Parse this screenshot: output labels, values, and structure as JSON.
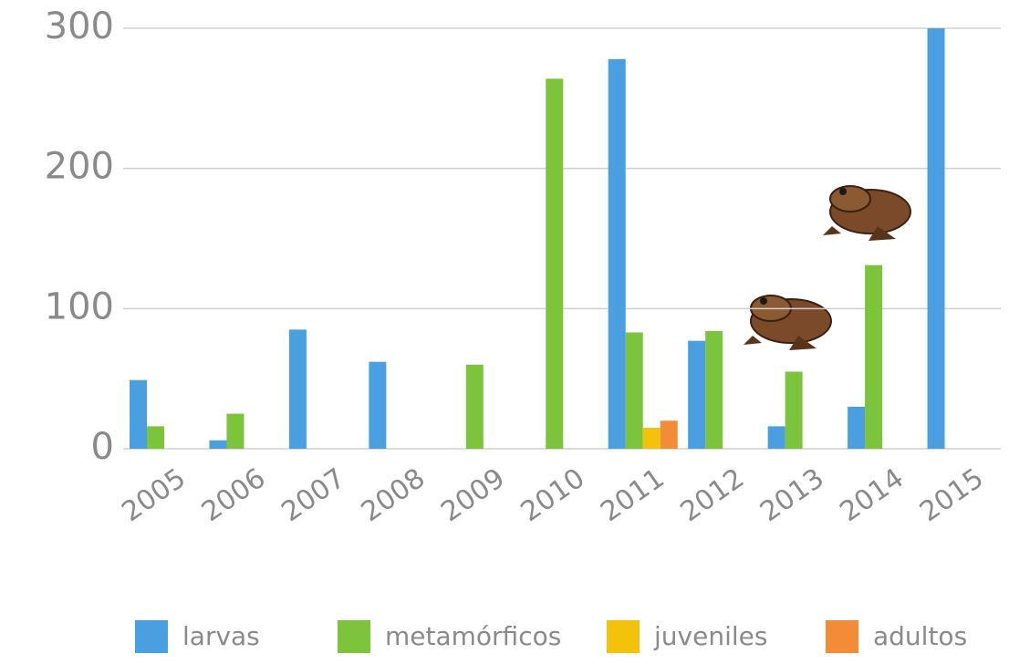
{
  "chart_data": {
    "type": "bar",
    "categories": [
      "2005",
      "2006",
      "2007",
      "2008",
      "2009",
      "2010",
      "2011",
      "2012",
      "2013",
      "2014",
      "2015"
    ],
    "series": [
      {
        "name": "larvas",
        "color": "#4a9fe0",
        "values": [
          49,
          6,
          85,
          62,
          null,
          null,
          278,
          77,
          16,
          30,
          300
        ]
      },
      {
        "name": "metamórficos",
        "color": "#7cc43b",
        "values": [
          16,
          25,
          null,
          null,
          60,
          264,
          83,
          84,
          55,
          131,
          null
        ]
      },
      {
        "name": "juveniles",
        "color": "#f5c20b",
        "values": [
          null,
          null,
          null,
          null,
          null,
          null,
          15,
          null,
          null,
          null,
          null
        ]
      },
      {
        "name": "adultos",
        "color": "#f28c36",
        "values": [
          null,
          null,
          null,
          null,
          null,
          null,
          20,
          null,
          null,
          null,
          null
        ]
      }
    ],
    "ylim": [
      0,
      300
    ],
    "yticks": [
      0,
      100,
      200,
      300
    ],
    "grid": true,
    "legend": "bottom"
  }
}
